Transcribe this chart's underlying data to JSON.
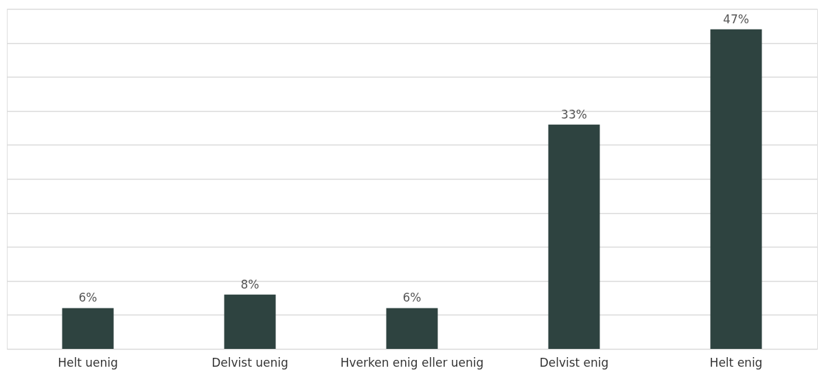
{
  "chart_data": {
    "type": "bar",
    "categories": [
      "Helt uenig",
      "Delvist uenig",
      "Hverken enig eller uenig",
      "Delvist enig",
      "Helt enig"
    ],
    "values": [
      6,
      8,
      6,
      33,
      47
    ],
    "value_labels": [
      "6%",
      "8%",
      "6%",
      "33%",
      "47%"
    ],
    "color": "#2e4340",
    "ylim": [
      0,
      50
    ],
    "yticks": [
      {
        "value": 0,
        "label": null
      },
      {
        "value": 5,
        "label": null
      },
      {
        "value": 10,
        "label": null
      },
      {
        "value": 15,
        "label": null
      },
      {
        "value": 20,
        "label": null
      },
      {
        "value": 25,
        "label": null
      },
      {
        "value": 30,
        "label": null
      },
      {
        "value": 35,
        "label": null
      },
      {
        "value": 40,
        "label": null
      },
      {
        "value": 45,
        "label": null
      },
      {
        "value": 50,
        "label": null
      }
    ],
    "grid": "y",
    "tick_labels": "x"
  }
}
